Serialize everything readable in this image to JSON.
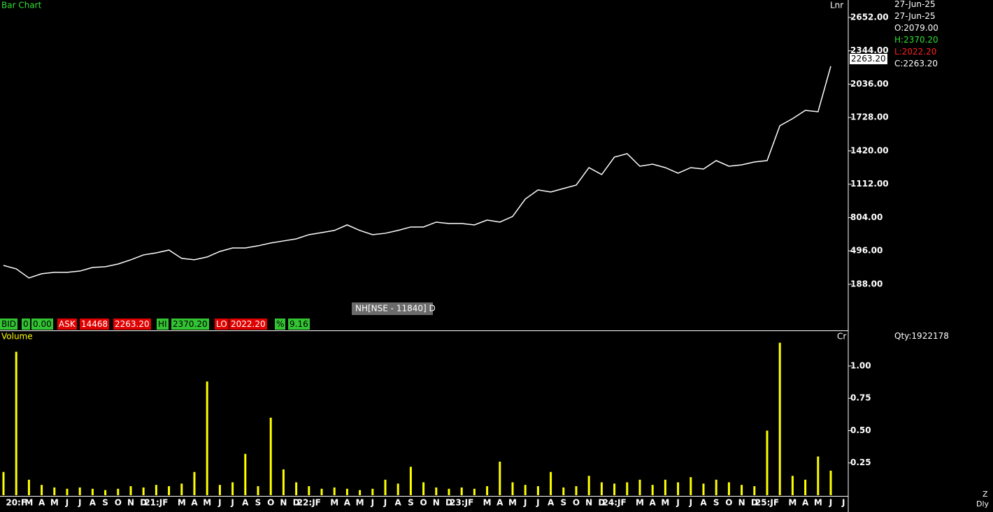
{
  "header": {
    "date_1": "27-Jun-25",
    "date_2": "27-Jun-25",
    "open": "O:2079.00",
    "high": "H:2370.20",
    "low": "L:2022.20",
    "close": "C:2263.20",
    "qty": "Qty:1922178",
    "symbol": "NH[NSE - 11840] D",
    "last_price": {
      "value": 2263.2,
      "label": "2263.20"
    },
    "period": "Z",
    "interval": "Dly"
  },
  "quote_bar": {
    "bid_label": "BID",
    "bid_qty": "0",
    "bid": "0.00",
    "ask_label": "ASK",
    "ask_qty": "14468",
    "ask": "2263.20",
    "hi_label": "HI",
    "hi": "2370.20",
    "lo_label": "LO",
    "lo": "2022.20",
    "pct_label": "%",
    "pct": "9.16"
  },
  "chart_data": [
    {
      "type": "line",
      "title": "Bar Chart",
      "y_axis_label": "Lnr",
      "color": "#ffffff",
      "values": [
        362,
        330,
        246,
        285,
        298,
        298,
        310,
        343,
        350,
        375,
        414,
        459,
        478,
        504,
        427,
        414,
        440,
        491,
        523,
        523,
        543,
        569,
        588,
        607,
        646,
        665,
        685,
        736,
        685,
        646,
        659,
        685,
        717,
        717,
        762,
        749,
        749,
        736,
        781,
        762,
        814,
        975,
        1059,
        1040,
        1072,
        1104,
        1265,
        1201,
        1362,
        1394,
        1278,
        1297,
        1265,
        1214,
        1265,
        1252,
        1330,
        1278,
        1291,
        1317,
        1330,
        1652,
        1717,
        1794,
        1781,
        2201,
        null
      ],
      "ylim": [
        -238,
        2813
      ],
      "yticks": [
        {
          "value": 188,
          "label": "188.00"
        },
        {
          "value": 496,
          "label": "496.00"
        },
        {
          "value": 804,
          "label": "804.00"
        },
        {
          "value": 1112,
          "label": "1112.00"
        },
        {
          "value": 1420,
          "label": "1420.00"
        },
        {
          "value": 1728,
          "label": "1728.00"
        },
        {
          "value": 2036,
          "label": "2036.00"
        },
        {
          "value": 2344,
          "label": "2344.00"
        },
        {
          "value": 2652,
          "label": "2652.00"
        }
      ]
    },
    {
      "type": "bar",
      "title": "Volume",
      "y_axis_label": "Cr",
      "color": "#ffff00",
      "categories": [
        null,
        "20:F",
        "M",
        "A",
        "M",
        "J",
        "J",
        "A",
        "S",
        "O",
        "N",
        "D",
        "21:JF",
        null,
        "M",
        "A",
        "M",
        "J",
        "J",
        "A",
        "S",
        "O",
        "N",
        "D",
        "22:JF",
        null,
        "M",
        "A",
        "M",
        "J",
        "J",
        "A",
        "S",
        "O",
        "N",
        "D",
        "23:JF",
        null,
        "M",
        "A",
        "M",
        "J",
        "J",
        "A",
        "S",
        "O",
        "N",
        "D",
        "24:JF",
        null,
        "M",
        "A",
        "M",
        "J",
        "J",
        "A",
        "S",
        "O",
        "N",
        "D",
        "25:JF",
        null,
        "M",
        "A",
        "M",
        "J",
        "J"
      ],
      "values": [
        0.18,
        1.11,
        0.12,
        0.08,
        0.06,
        0.05,
        0.06,
        0.05,
        0.04,
        0.05,
        0.07,
        0.06,
        0.08,
        0.07,
        0.09,
        0.18,
        0.88,
        0.08,
        0.1,
        0.32,
        0.07,
        0.6,
        0.2,
        0.1,
        0.07,
        0.05,
        0.06,
        0.05,
        0.04,
        0.05,
        0.12,
        0.09,
        0.22,
        0.1,
        0.06,
        0.05,
        0.06,
        0.05,
        0.07,
        0.26,
        0.1,
        0.08,
        0.07,
        0.18,
        0.06,
        0.07,
        0.15,
        0.1,
        0.09,
        0.1,
        0.12,
        0.08,
        0.12,
        0.1,
        0.14,
        0.09,
        0.12,
        0.1,
        0.08,
        0.07,
        0.5,
        1.18,
        0.15,
        0.12,
        0.3,
        0.19,
        null
      ],
      "ylim": [
        0,
        1.27
      ],
      "yticks": [
        {
          "value": 0.25,
          "label": "0.25"
        },
        {
          "value": 0.5,
          "label": "0.50"
        },
        {
          "value": 0.75,
          "label": "0.75"
        },
        {
          "value": 1,
          "label": "1.00"
        }
      ]
    }
  ]
}
